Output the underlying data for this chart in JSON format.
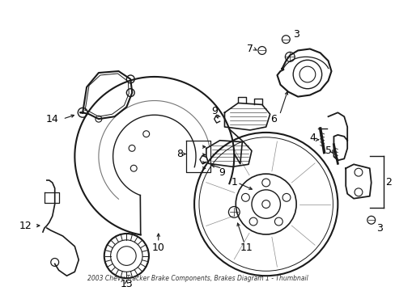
{
  "bg_color": "#ffffff",
  "line_color": "#1a1a1a",
  "figsize": [
    4.89,
    3.6
  ],
  "dpi": 100,
  "title": "2003 Chevy Tracker Brake Components, Brakes Diagram 1 - Thumbnail"
}
